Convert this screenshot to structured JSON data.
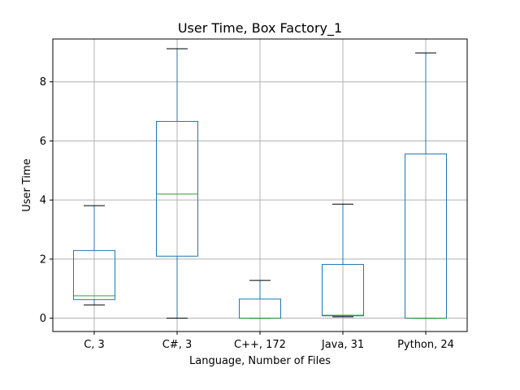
{
  "chart_data": {
    "type": "box",
    "title": "User Time, Box Factory_1",
    "xlabel": "Language, Number of Files",
    "ylabel": "User Time",
    "ylim": [
      -0.45,
      9.45
    ],
    "yticks": [
      0,
      2,
      4,
      6,
      8
    ],
    "grid": true,
    "categories": [
      "C, 3",
      "C#, 3",
      "C++, 172",
      "Java, 31",
      "Python, 24"
    ],
    "boxes": [
      {
        "whisker_low": 0.45,
        "q1": 0.63,
        "median": 0.76,
        "q3": 2.29,
        "whisker_high": 3.81
      },
      {
        "whisker_low": 0.0,
        "q1": 2.1,
        "median": 4.2,
        "q3": 6.66,
        "whisker_high": 9.12
      },
      {
        "whisker_low": 0.0,
        "q1": 0.0,
        "median": 0.0,
        "q3": 0.65,
        "whisker_high": 1.28
      },
      {
        "whisker_low": 0.05,
        "q1": 0.08,
        "median": 0.1,
        "q3": 1.82,
        "whisker_high": 3.86
      },
      {
        "whisker_low": 0.0,
        "q1": 0.0,
        "median": 0.0,
        "q3": 5.56,
        "whisker_high": 8.98
      }
    ],
    "colors": {
      "box": "#1f77b4",
      "median": "#2ca02c",
      "cap": "#000000",
      "grid": "#b0b0b0"
    }
  }
}
